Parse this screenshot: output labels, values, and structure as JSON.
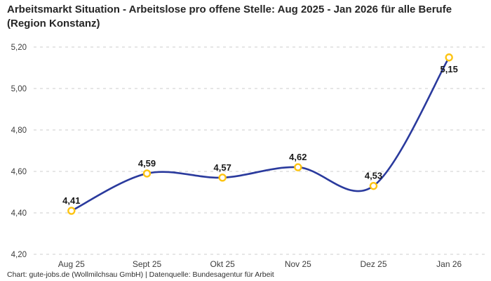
{
  "chart_data": {
    "type": "line",
    "title": "Arbeitsmarkt Situation - Arbeitslose pro offene Stelle: Aug 2025 - Jan 2026 für alle Berufe (Region Konstanz)",
    "categories": [
      "Aug 25",
      "Sept 25",
      "Okt 25",
      "Nov 25",
      "Dez 25",
      "Jan 26"
    ],
    "values": [
      4.41,
      4.59,
      4.57,
      4.62,
      4.53,
      5.15
    ],
    "value_labels": [
      "4,41",
      "4,59",
      "4,57",
      "4,62",
      "4,53",
      "5,15"
    ],
    "ylim": [
      4.2,
      5.2
    ],
    "yticks": [
      4.2,
      4.4,
      4.6,
      4.8,
      5.0,
      5.2
    ],
    "ytick_labels": [
      "4,20",
      "4,40",
      "4,60",
      "4,80",
      "5,00",
      "5,20"
    ],
    "xlabel": "",
    "ylabel": "",
    "grid": "horizontal-dashed",
    "legend": "none",
    "colors": {
      "line": "#2A3A9D",
      "marker_stroke": "#FDC412",
      "marker_fill": "#FFFFFF",
      "grid": "#CCCCCC",
      "tick_text": "#3C3C3C",
      "point_label_text": "#1A1A1A",
      "title_text": "#262626",
      "background": "#FFFFFF"
    }
  },
  "footer": "Chart: gute-jobs.de (Wollmilchsau GmbH) | Datenquelle: Bundesagentur für Arbeit"
}
